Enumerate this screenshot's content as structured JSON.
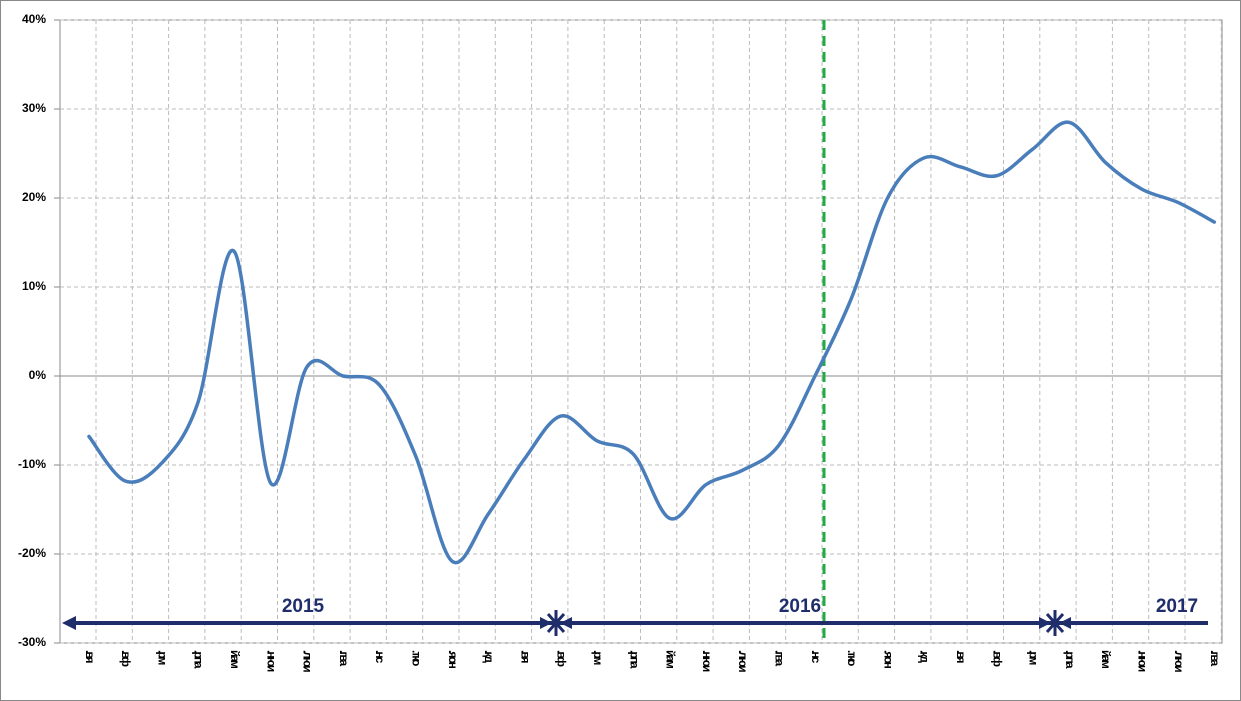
{
  "chart_data": {
    "type": "line",
    "categories": [
      ".вя",
      ".вф",
      ".рм",
      ".рпа",
      "йам",
      ".нюи",
      ".люи",
      ".гва",
      ".нс",
      ".тко",
      ".яон",
      ".кд",
      ".вя",
      ".вф",
      ".рм",
      ".рпа",
      "йам",
      ".нюи",
      ".люи",
      ".гва",
      ".нс",
      ".тко",
      ".яон",
      ".кд",
      ".вя",
      ".вф",
      ".рм",
      ".рпа",
      "йам",
      ".нюи",
      ".люи",
      ".гва"
    ],
    "series": [
      {
        "color": "#4a7ebb",
        "values": [
          -6.8,
          -11.8,
          -9.8,
          -3,
          14,
          -12,
          1,
          0,
          -1,
          -9,
          -20.8,
          -15.5,
          -9.3,
          -4.5,
          -7.3,
          -8.8,
          -16,
          -12.2,
          -10.6,
          -7.8,
          0,
          8.7,
          20,
          24.5,
          23.5,
          22.5,
          25.5,
          28.5,
          24,
          21,
          19.5,
          17.3
        ]
      }
    ],
    "ylim": [
      -30,
      40
    ],
    "yticks": [
      {
        "value": -30,
        "label": "-30%"
      },
      {
        "value": -20,
        "label": "-20%"
      },
      {
        "value": -10,
        "label": "-10%"
      },
      {
        "value": 0,
        "label": "0%"
      },
      {
        "value": 10,
        "label": "10%"
      },
      {
        "value": 20,
        "label": "20%"
      },
      {
        "value": 30,
        "label": "30%"
      },
      {
        "value": 40,
        "label": "40%"
      }
    ],
    "grid": true,
    "annotations": [
      "2015",
      "2016",
      "2017"
    ]
  }
}
